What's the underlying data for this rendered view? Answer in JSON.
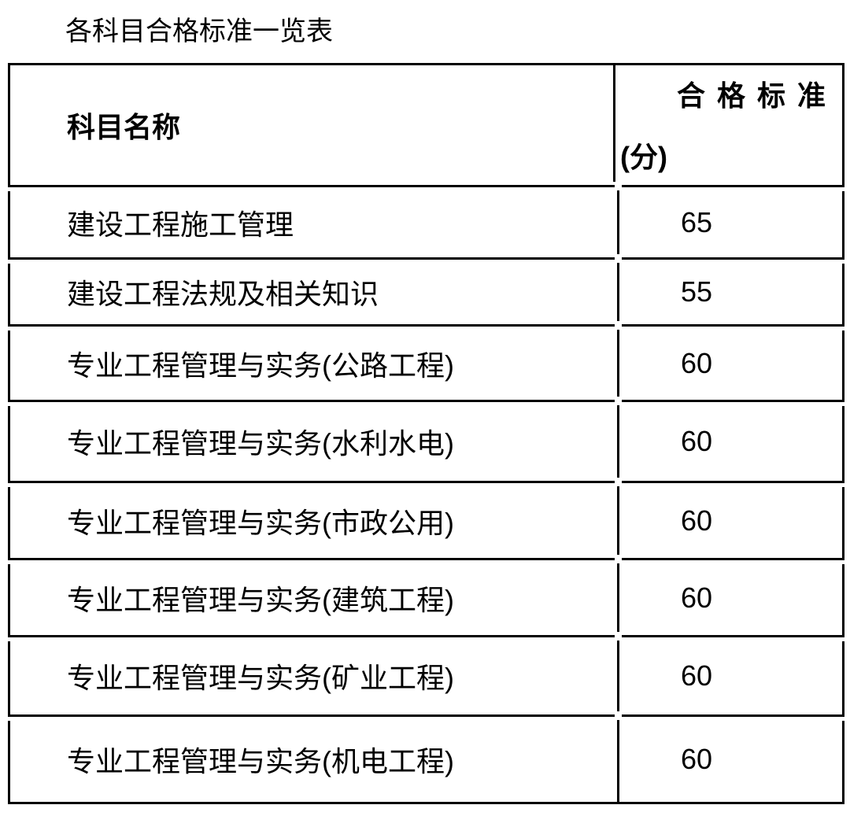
{
  "title": "各科目合格标准一览表",
  "colors": {
    "border": "#000000",
    "text": "#000000",
    "background": "#ffffff"
  },
  "table": {
    "header": {
      "subject": "科目名称",
      "score_line1": "合格标准",
      "score_line2": "(分)"
    },
    "rows": [
      {
        "subject": "建设工程施工管理",
        "score": "65"
      },
      {
        "subject": "建设工程法规及相关知识",
        "score": "55"
      },
      {
        "subject": "专业工程管理与实务(公路工程)",
        "score": "60"
      },
      {
        "subject": "专业工程管理与实务(水利水电)",
        "score": "60"
      },
      {
        "subject": "专业工程管理与实务(市政公用)",
        "score": "60"
      },
      {
        "subject": "专业工程管理与实务(建筑工程)",
        "score": "60"
      },
      {
        "subject": "专业工程管理与实务(矿业工程)",
        "score": "60"
      },
      {
        "subject": "专业工程管理与实务(机电工程)",
        "score": "60"
      }
    ]
  }
}
